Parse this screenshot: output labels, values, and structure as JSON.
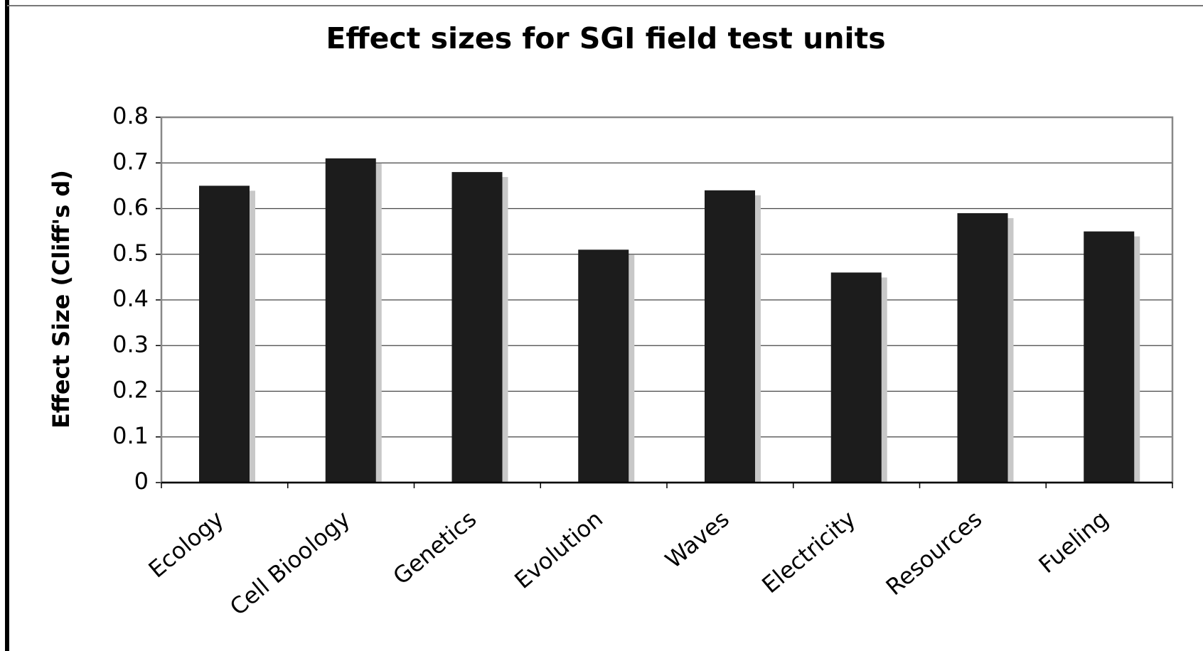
{
  "chart_data": {
    "type": "bar",
    "title": "Effect sizes for SGI field test units",
    "y_label": "Effect Size (Cliff's d)",
    "categories": [
      "Ecology",
      "Cell Bioology",
      "Genetics",
      "Evolution",
      "Waves",
      "Electricity",
      "Resources",
      "Fueling"
    ],
    "values": [
      0.65,
      0.71,
      0.68,
      0.51,
      0.64,
      0.46,
      0.59,
      0.55
    ],
    "color": "#1c1c1c",
    "ylim": [
      0,
      0.8
    ],
    "yticks": [
      0,
      0.1,
      0.2,
      0.3,
      0.4,
      0.5,
      0.6,
      0.7,
      0.8
    ],
    "grid": true
  }
}
